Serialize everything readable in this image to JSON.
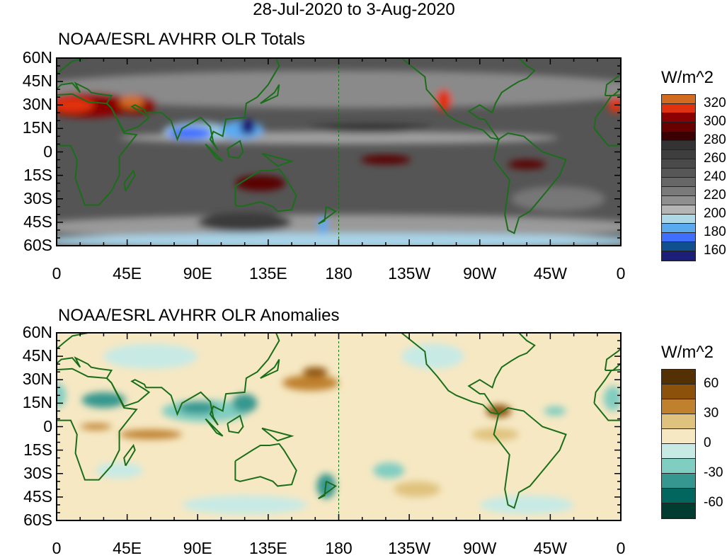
{
  "title": "28-Jul-2020 to 3-Aug-2020",
  "x_ticks": [
    "0",
    "45E",
    "90E",
    "135E",
    "180",
    "135W",
    "90W",
    "45W",
    "0"
  ],
  "y_ticks": [
    "60N",
    "45N",
    "30N",
    "15N",
    "0",
    "15S",
    "30S",
    "45S",
    "60S"
  ],
  "chart_data": [
    {
      "type": "heatmap",
      "title": "NOAA/ESRL AVHRR OLR Totals",
      "units": "W/m^2",
      "lon_range": [
        0,
        360
      ],
      "lat_range": [
        -60,
        60
      ],
      "colorbar": {
        "labels": [
          "320",
          "300",
          "280",
          "260",
          "240",
          "220",
          "200",
          "180",
          "160"
        ],
        "colors": [
          "#d26a20",
          "#e0320f",
          "#8b0000",
          "#680000",
          "#3a0002",
          "#333333",
          "#3e3e3e",
          "#4a4a4a",
          "#575757",
          "#676767",
          "#7a7a7a",
          "#8f8f8f",
          "#b5b5b5",
          "#add8e6",
          "#5aaaf0",
          "#3f6fff",
          "#10508e",
          "#1b1f78"
        ]
      }
    },
    {
      "type": "heatmap",
      "title": "NOAA/ESRL AVHRR OLR Anomalies",
      "units": "W/m^2",
      "lon_range": [
        0,
        360
      ],
      "lat_range": [
        -60,
        60
      ],
      "colorbar": {
        "labels": [
          "60",
          "30",
          "0",
          "-30",
          "-60"
        ],
        "colors": [
          "#543005",
          "#8c510a",
          "#bf812d",
          "#dfc27d",
          "#f6e8c3",
          "#c7eae5",
          "#80cdc1",
          "#35978f",
          "#01665e",
          "#003c30"
        ]
      }
    }
  ]
}
